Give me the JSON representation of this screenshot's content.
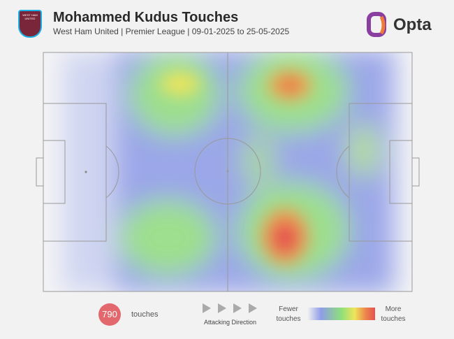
{
  "header": {
    "title": "Mohammed Kudus Touches",
    "subtitle": "West Ham United | Premier League | 09-01-2025 to 25-05-2025",
    "badge": "WEST HAM UNITED",
    "brand": "Opta"
  },
  "footer": {
    "count": 790,
    "count_label": "touches",
    "direction": "Attacking Direction",
    "legend_low": "Fewer touches",
    "legend_high": "More touches"
  }
}
